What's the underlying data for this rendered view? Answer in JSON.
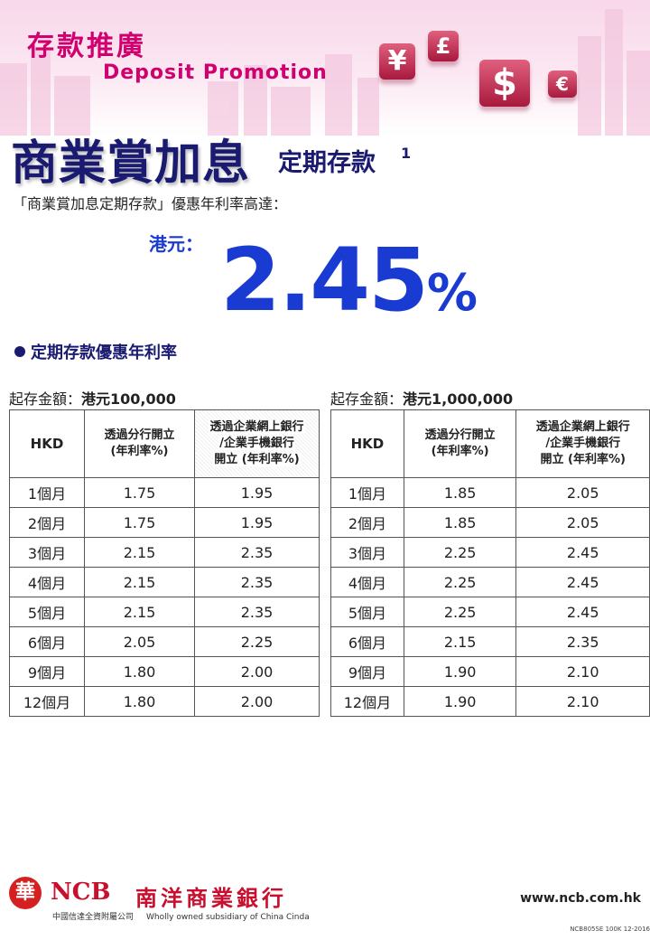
{
  "header": {
    "title_cn": "存款推廣",
    "title_en": "Deposit Promotion",
    "currency_icons": [
      "¥",
      "£",
      "$",
      "€"
    ],
    "accent_color": "#d0006f"
  },
  "product": {
    "name": "商業賞加息",
    "suffix": "定期存款",
    "footnote": "1"
  },
  "intro": "「商業賞加息定期存款」優惠年利率高達：",
  "highlight": {
    "currency_label": "港元：",
    "rate": "2.45",
    "unit": "%"
  },
  "section_title": "定期存款優惠年利率",
  "tables": [
    {
      "caption_prefix": "起存金額：",
      "caption_amount": "港元100,000",
      "headers": {
        "col1": "HKD",
        "col2": [
          "透過分行開立",
          "(年利率%)"
        ],
        "col3": [
          "透過企業網上銀行",
          "/企業手機銀行",
          "開立 (年利率%)"
        ]
      },
      "rows": [
        {
          "term": "1個月",
          "branch": "1.75",
          "online": "1.95"
        },
        {
          "term": "2個月",
          "branch": "1.75",
          "online": "1.95"
        },
        {
          "term": "3個月",
          "branch": "2.15",
          "online": "2.35"
        },
        {
          "term": "4個月",
          "branch": "2.15",
          "online": "2.35"
        },
        {
          "term": "5個月",
          "branch": "2.15",
          "online": "2.35"
        },
        {
          "term": "6個月",
          "branch": "2.05",
          "online": "2.25"
        },
        {
          "term": "9個月",
          "branch": "1.80",
          "online": "2.00"
        },
        {
          "term": "12個月",
          "branch": "1.80",
          "online": "2.00"
        }
      ]
    },
    {
      "caption_prefix": "起存金額：",
      "caption_amount": "港元1,000,000",
      "headers": {
        "col1": "HKD",
        "col2": [
          "透過分行開立",
          "(年利率%)"
        ],
        "col3": [
          "透過企業網上銀行",
          "/企業手機銀行",
          "開立 (年利率%)"
        ]
      },
      "rows": [
        {
          "term": "1個月",
          "branch": "1.85",
          "online": "2.05"
        },
        {
          "term": "2個月",
          "branch": "1.85",
          "online": "2.05"
        },
        {
          "term": "3個月",
          "branch": "2.25",
          "online": "2.45"
        },
        {
          "term": "4個月",
          "branch": "2.25",
          "online": "2.45"
        },
        {
          "term": "5個月",
          "branch": "2.25",
          "online": "2.45"
        },
        {
          "term": "6個月",
          "branch": "2.15",
          "online": "2.35"
        },
        {
          "term": "9個月",
          "branch": "1.90",
          "online": "2.10"
        },
        {
          "term": "12個月",
          "branch": "1.90",
          "online": "2.10"
        }
      ]
    }
  ],
  "footer": {
    "logo_mark": "華",
    "logo_ncb": "NCB",
    "logo_name": "南洋商業銀行",
    "subsidiary_cn": "中國信達全資附屬公司",
    "subsidiary_en": "Wholly owned subsidiary of China Cinda",
    "website": "www.ncb.com.hk",
    "code": "NCB805SE 100K 12-2016"
  }
}
